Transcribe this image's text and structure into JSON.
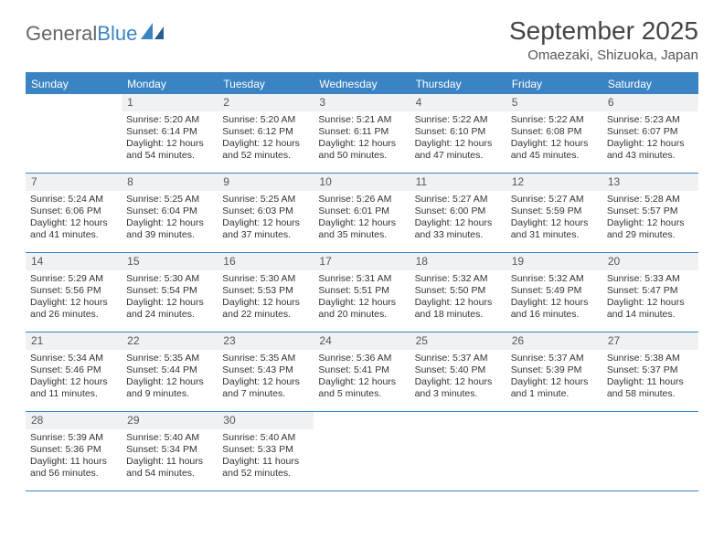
{
  "logo": {
    "text1": "General",
    "text2": "Blue"
  },
  "title": "September 2025",
  "location": "Omaezaki, Shizuoka, Japan",
  "colors": {
    "brand": "#3b84c4",
    "text": "#333333",
    "header_text": "#666666",
    "daynum_bg": "#eef2f5",
    "white": "#ffffff"
  },
  "weekdays": [
    "Sunday",
    "Monday",
    "Tuesday",
    "Wednesday",
    "Thursday",
    "Friday",
    "Saturday"
  ],
  "weeks": [
    [
      null,
      {
        "n": "1",
        "sr": "Sunrise: 5:20 AM",
        "ss": "Sunset: 6:14 PM",
        "d1": "Daylight: 12 hours",
        "d2": "and 54 minutes."
      },
      {
        "n": "2",
        "sr": "Sunrise: 5:20 AM",
        "ss": "Sunset: 6:12 PM",
        "d1": "Daylight: 12 hours",
        "d2": "and 52 minutes."
      },
      {
        "n": "3",
        "sr": "Sunrise: 5:21 AM",
        "ss": "Sunset: 6:11 PM",
        "d1": "Daylight: 12 hours",
        "d2": "and 50 minutes."
      },
      {
        "n": "4",
        "sr": "Sunrise: 5:22 AM",
        "ss": "Sunset: 6:10 PM",
        "d1": "Daylight: 12 hours",
        "d2": "and 47 minutes."
      },
      {
        "n": "5",
        "sr": "Sunrise: 5:22 AM",
        "ss": "Sunset: 6:08 PM",
        "d1": "Daylight: 12 hours",
        "d2": "and 45 minutes."
      },
      {
        "n": "6",
        "sr": "Sunrise: 5:23 AM",
        "ss": "Sunset: 6:07 PM",
        "d1": "Daylight: 12 hours",
        "d2": "and 43 minutes."
      }
    ],
    [
      {
        "n": "7",
        "sr": "Sunrise: 5:24 AM",
        "ss": "Sunset: 6:06 PM",
        "d1": "Daylight: 12 hours",
        "d2": "and 41 minutes."
      },
      {
        "n": "8",
        "sr": "Sunrise: 5:25 AM",
        "ss": "Sunset: 6:04 PM",
        "d1": "Daylight: 12 hours",
        "d2": "and 39 minutes."
      },
      {
        "n": "9",
        "sr": "Sunrise: 5:25 AM",
        "ss": "Sunset: 6:03 PM",
        "d1": "Daylight: 12 hours",
        "d2": "and 37 minutes."
      },
      {
        "n": "10",
        "sr": "Sunrise: 5:26 AM",
        "ss": "Sunset: 6:01 PM",
        "d1": "Daylight: 12 hours",
        "d2": "and 35 minutes."
      },
      {
        "n": "11",
        "sr": "Sunrise: 5:27 AM",
        "ss": "Sunset: 6:00 PM",
        "d1": "Daylight: 12 hours",
        "d2": "and 33 minutes."
      },
      {
        "n": "12",
        "sr": "Sunrise: 5:27 AM",
        "ss": "Sunset: 5:59 PM",
        "d1": "Daylight: 12 hours",
        "d2": "and 31 minutes."
      },
      {
        "n": "13",
        "sr": "Sunrise: 5:28 AM",
        "ss": "Sunset: 5:57 PM",
        "d1": "Daylight: 12 hours",
        "d2": "and 29 minutes."
      }
    ],
    [
      {
        "n": "14",
        "sr": "Sunrise: 5:29 AM",
        "ss": "Sunset: 5:56 PM",
        "d1": "Daylight: 12 hours",
        "d2": "and 26 minutes."
      },
      {
        "n": "15",
        "sr": "Sunrise: 5:30 AM",
        "ss": "Sunset: 5:54 PM",
        "d1": "Daylight: 12 hours",
        "d2": "and 24 minutes."
      },
      {
        "n": "16",
        "sr": "Sunrise: 5:30 AM",
        "ss": "Sunset: 5:53 PM",
        "d1": "Daylight: 12 hours",
        "d2": "and 22 minutes."
      },
      {
        "n": "17",
        "sr": "Sunrise: 5:31 AM",
        "ss": "Sunset: 5:51 PM",
        "d1": "Daylight: 12 hours",
        "d2": "and 20 minutes."
      },
      {
        "n": "18",
        "sr": "Sunrise: 5:32 AM",
        "ss": "Sunset: 5:50 PM",
        "d1": "Daylight: 12 hours",
        "d2": "and 18 minutes."
      },
      {
        "n": "19",
        "sr": "Sunrise: 5:32 AM",
        "ss": "Sunset: 5:49 PM",
        "d1": "Daylight: 12 hours",
        "d2": "and 16 minutes."
      },
      {
        "n": "20",
        "sr": "Sunrise: 5:33 AM",
        "ss": "Sunset: 5:47 PM",
        "d1": "Daylight: 12 hours",
        "d2": "and 14 minutes."
      }
    ],
    [
      {
        "n": "21",
        "sr": "Sunrise: 5:34 AM",
        "ss": "Sunset: 5:46 PM",
        "d1": "Daylight: 12 hours",
        "d2": "and 11 minutes."
      },
      {
        "n": "22",
        "sr": "Sunrise: 5:35 AM",
        "ss": "Sunset: 5:44 PM",
        "d1": "Daylight: 12 hours",
        "d2": "and 9 minutes."
      },
      {
        "n": "23",
        "sr": "Sunrise: 5:35 AM",
        "ss": "Sunset: 5:43 PM",
        "d1": "Daylight: 12 hours",
        "d2": "and 7 minutes."
      },
      {
        "n": "24",
        "sr": "Sunrise: 5:36 AM",
        "ss": "Sunset: 5:41 PM",
        "d1": "Daylight: 12 hours",
        "d2": "and 5 minutes."
      },
      {
        "n": "25",
        "sr": "Sunrise: 5:37 AM",
        "ss": "Sunset: 5:40 PM",
        "d1": "Daylight: 12 hours",
        "d2": "and 3 minutes."
      },
      {
        "n": "26",
        "sr": "Sunrise: 5:37 AM",
        "ss": "Sunset: 5:39 PM",
        "d1": "Daylight: 12 hours",
        "d2": "and 1 minute."
      },
      {
        "n": "27",
        "sr": "Sunrise: 5:38 AM",
        "ss": "Sunset: 5:37 PM",
        "d1": "Daylight: 11 hours",
        "d2": "and 58 minutes."
      }
    ],
    [
      {
        "n": "28",
        "sr": "Sunrise: 5:39 AM",
        "ss": "Sunset: 5:36 PM",
        "d1": "Daylight: 11 hours",
        "d2": "and 56 minutes."
      },
      {
        "n": "29",
        "sr": "Sunrise: 5:40 AM",
        "ss": "Sunset: 5:34 PM",
        "d1": "Daylight: 11 hours",
        "d2": "and 54 minutes."
      },
      {
        "n": "30",
        "sr": "Sunrise: 5:40 AM",
        "ss": "Sunset: 5:33 PM",
        "d1": "Daylight: 11 hours",
        "d2": "and 52 minutes."
      },
      null,
      null,
      null,
      null
    ]
  ]
}
